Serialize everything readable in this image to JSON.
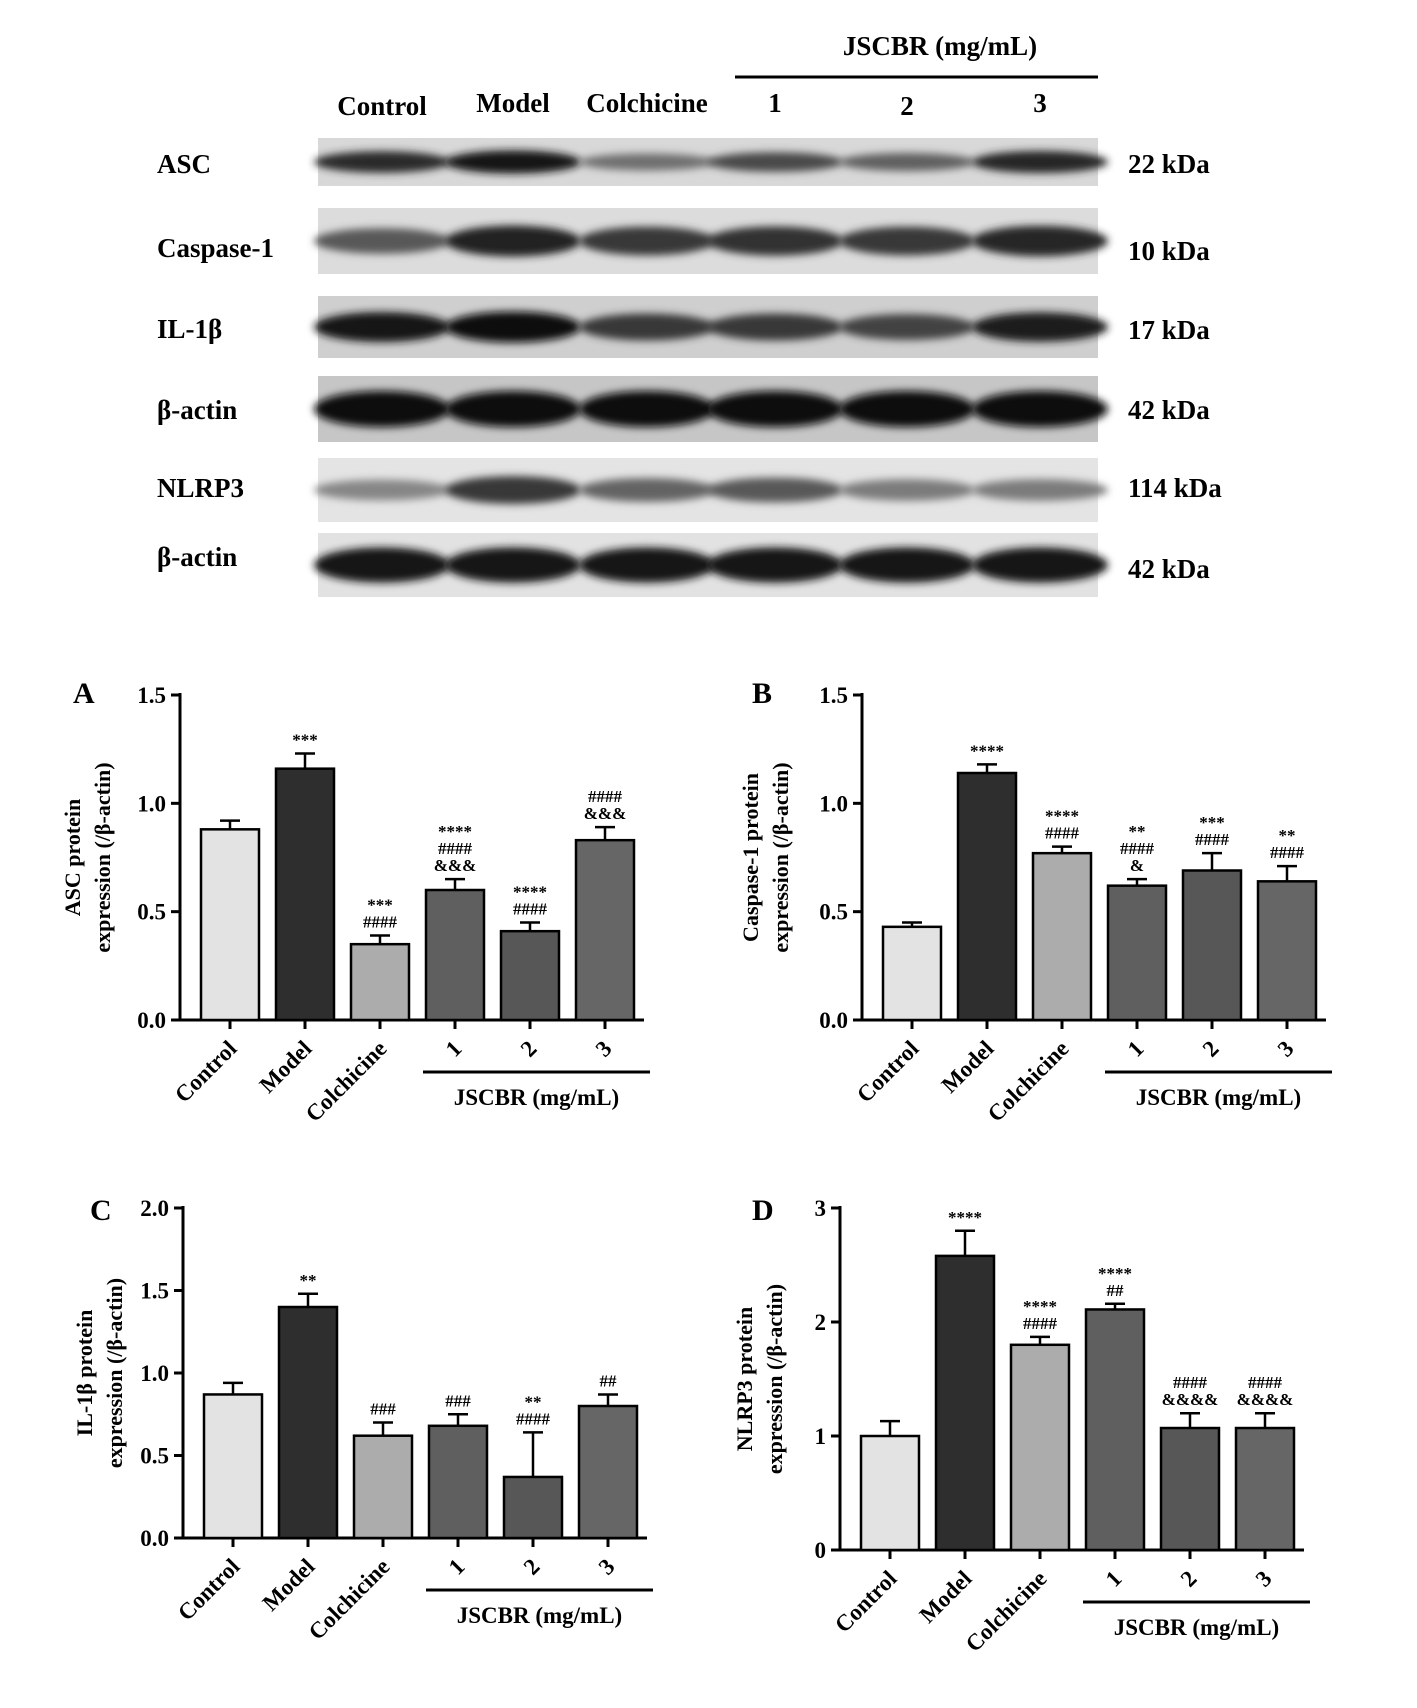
{
  "blot": {
    "group_header": "JSCBR (mg/mL)",
    "lanes": [
      "Control",
      "Model",
      "Colchicine",
      "1",
      "2",
      "3"
    ],
    "rows": [
      {
        "protein": "ASC",
        "size": "22 kDa",
        "intensity": [
          0.85,
          0.95,
          0.55,
          0.72,
          0.62,
          0.88
        ],
        "bg": "#d8d8d8"
      },
      {
        "protein": "Caspase-1",
        "size": "10 kDa",
        "intensity": [
          0.65,
          0.9,
          0.8,
          0.82,
          0.8,
          0.88
        ],
        "bg": "#dcdcdc"
      },
      {
        "protein": "IL-1β",
        "size": "17 kDa",
        "intensity": [
          0.95,
          1.0,
          0.8,
          0.8,
          0.75,
          0.92
        ],
        "bg": "#cfcfcf"
      },
      {
        "protein": "β-actin",
        "size": "42 kDa",
        "intensity": [
          1.0,
          1.0,
          1.0,
          1.0,
          1.0,
          1.0
        ],
        "bg": "#c6c6c6"
      },
      {
        "protein": "NLRP3",
        "size": "114 kDa",
        "intensity": [
          0.45,
          0.8,
          0.6,
          0.65,
          0.5,
          0.5
        ],
        "bg": "#e4e4e4"
      },
      {
        "protein": "β-actin",
        "size": "42 kDa",
        "intensity": [
          0.95,
          0.95,
          0.95,
          0.95,
          0.95,
          0.95
        ],
        "bg": "#e2e2e2"
      }
    ]
  },
  "chart_data": [
    {
      "type": "bar",
      "panel": "A",
      "ylabel_line1": "ASC  protein",
      "ylabel_line2": "expression (/β-actin)",
      "categories": [
        "Control",
        "Model",
        "Colchicine",
        "1",
        "2",
        "3"
      ],
      "group_label": "JSCBR (mg/mL)",
      "values": [
        0.88,
        1.16,
        0.35,
        0.6,
        0.41,
        0.83
      ],
      "errors": [
        0.04,
        0.07,
        0.04,
        0.05,
        0.04,
        0.06
      ],
      "ylim": [
        0,
        1.5
      ],
      "yticks": [
        "0.0",
        "0.5",
        "1.0",
        "1.5"
      ],
      "annotations": [
        [],
        [
          "***"
        ],
        [
          "***",
          "####"
        ],
        [
          "****",
          "####",
          "&&&"
        ],
        [
          "****",
          "####"
        ],
        [
          "####",
          "&&&"
        ]
      ],
      "colors": [
        "#e3e3e3",
        "#2e2e2e",
        "#acacac",
        "#5f5f5f",
        "#575757",
        "#666666"
      ]
    },
    {
      "type": "bar",
      "panel": "B",
      "ylabel_line1": "Caspase-1  protein",
      "ylabel_line2": "expression (/β-actin)",
      "categories": [
        "Control",
        "Model",
        "Colchicine",
        "1",
        "2",
        "3"
      ],
      "group_label": "JSCBR (mg/mL)",
      "values": [
        0.43,
        1.14,
        0.77,
        0.62,
        0.69,
        0.64
      ],
      "errors": [
        0.02,
        0.04,
        0.03,
        0.03,
        0.08,
        0.07
      ],
      "ylim": [
        0,
        1.5
      ],
      "yticks": [
        "0.0",
        "0.5",
        "1.0",
        "1.5"
      ],
      "annotations": [
        [],
        [
          "****"
        ],
        [
          "****",
          "####"
        ],
        [
          "**",
          "####",
          "&"
        ],
        [
          "***",
          "####"
        ],
        [
          "**",
          "####"
        ]
      ],
      "colors": [
        "#e3e3e3",
        "#2e2e2e",
        "#acacac",
        "#5f5f5f",
        "#575757",
        "#666666"
      ]
    },
    {
      "type": "bar",
      "panel": "C",
      "ylabel_line1": "IL-1β  protein",
      "ylabel_line2": "expression (/β-actin)",
      "categories": [
        "Control",
        "Model",
        "Colchicine",
        "1",
        "2",
        "3"
      ],
      "group_label": "JSCBR (mg/mL)",
      "values": [
        0.87,
        1.4,
        0.62,
        0.68,
        0.37,
        0.8
      ],
      "errors": [
        0.07,
        0.08,
        0.08,
        0.07,
        0.27,
        0.07
      ],
      "ylim": [
        0,
        2.0
      ],
      "yticks": [
        "0.0",
        "0.5",
        "1.0",
        "1.5",
        "2.0"
      ],
      "annotations": [
        [],
        [
          "**"
        ],
        [
          "###"
        ],
        [
          "###"
        ],
        [
          "**",
          "####"
        ],
        [
          "##"
        ]
      ],
      "colors": [
        "#e3e3e3",
        "#2e2e2e",
        "#acacac",
        "#5f5f5f",
        "#575757",
        "#666666"
      ]
    },
    {
      "type": "bar",
      "panel": "D",
      "ylabel_line1": "NLRP3  protein",
      "ylabel_line2": "expression (/β-actin)",
      "categories": [
        "Control",
        "Model",
        "Colchicine",
        "1",
        "2",
        "3"
      ],
      "group_label": "JSCBR (mg/mL)",
      "values": [
        1.0,
        2.58,
        1.8,
        2.11,
        1.07,
        1.07
      ],
      "errors": [
        0.13,
        0.22,
        0.07,
        0.05,
        0.13,
        0.13
      ],
      "ylim": [
        0,
        3
      ],
      "yticks": [
        "0",
        "1",
        "2",
        "3"
      ],
      "annotations": [
        [],
        [
          "****"
        ],
        [
          "****",
          "####"
        ],
        [
          "****",
          "##"
        ],
        [
          "####",
          "&&&&"
        ],
        [
          "####",
          "&&&&"
        ]
      ],
      "colors": [
        "#e3e3e3",
        "#2e2e2e",
        "#acacac",
        "#5f5f5f",
        "#575757",
        "#666666"
      ]
    }
  ]
}
